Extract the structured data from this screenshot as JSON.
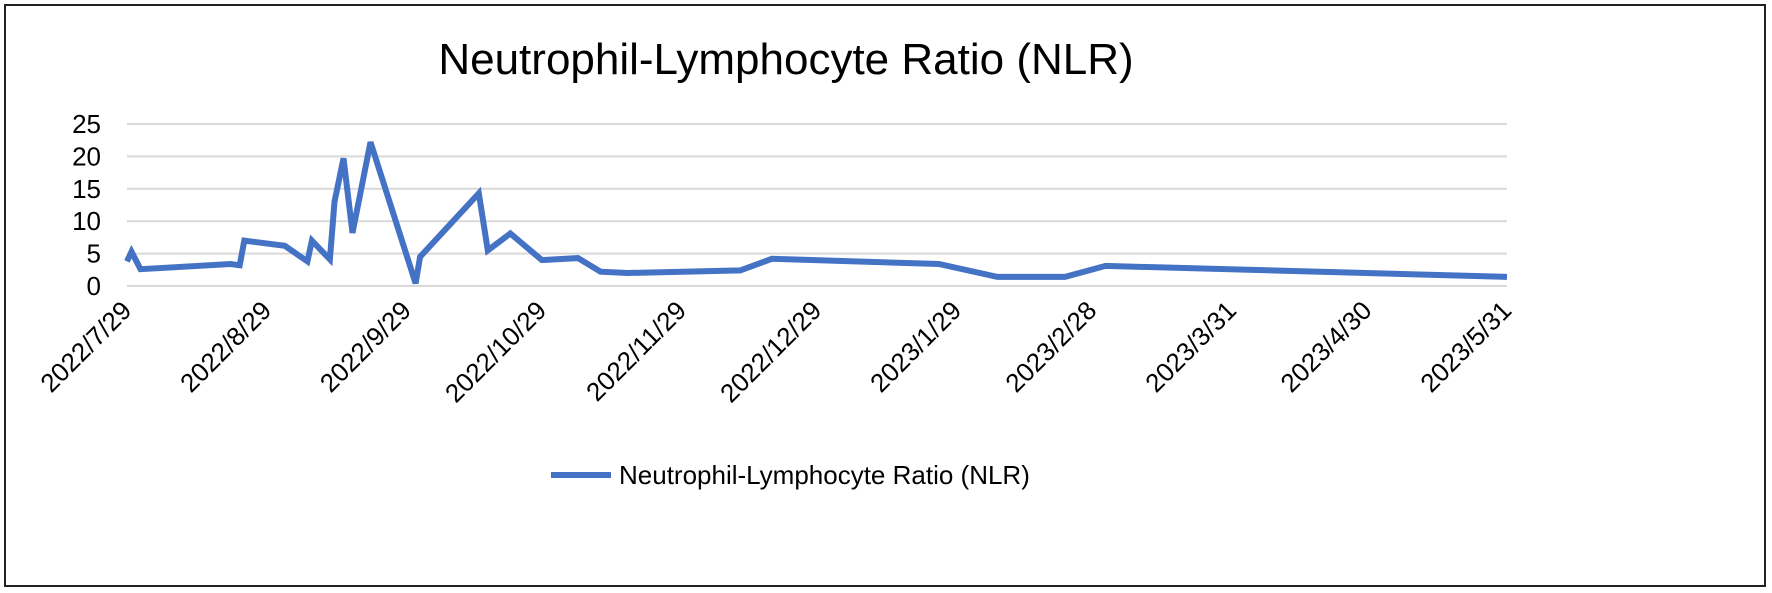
{
  "chart_data": {
    "type": "line",
    "title": "Neutrophil-Lymphocyte Ratio (NLR)",
    "xlabel": "",
    "ylabel": "",
    "xlim": [
      "2022-07-29",
      "2023-05-31"
    ],
    "ylim": [
      0,
      25
    ],
    "y_ticks": [
      0,
      5,
      10,
      15,
      20,
      25
    ],
    "x_tick_labels": [
      "2022/7/29",
      "2022/8/29",
      "2022/9/29",
      "2022/10/29",
      "2022/11/29",
      "2022/12/29",
      "2023/1/29",
      "2023/2/28",
      "2023/3/31",
      "2023/4/30",
      "2023/5/31"
    ],
    "x_tick_dates": [
      "2022-07-29",
      "2022-08-29",
      "2022-09-29",
      "2022-10-29",
      "2022-11-29",
      "2022-12-29",
      "2023-01-29",
      "2023-02-28",
      "2023-03-31",
      "2023-04-30",
      "2023-05-31"
    ],
    "grid": true,
    "legend_position": "bottom",
    "series": [
      {
        "name": "Neutrophil-Lymphocyte Ratio (NLR)",
        "color": "#4472C4",
        "points": [
          {
            "x": "2022-07-29",
            "y": 3.8
          },
          {
            "x": "2022-07-30",
            "y": 5.3
          },
          {
            "x": "2022-08-01",
            "y": 2.6
          },
          {
            "x": "2022-08-21",
            "y": 3.4
          },
          {
            "x": "2022-08-23",
            "y": 3.2
          },
          {
            "x": "2022-08-24",
            "y": 7.0
          },
          {
            "x": "2022-09-02",
            "y": 6.2
          },
          {
            "x": "2022-09-07",
            "y": 3.8
          },
          {
            "x": "2022-09-08",
            "y": 7.0
          },
          {
            "x": "2022-09-12",
            "y": 4.1
          },
          {
            "x": "2022-09-13",
            "y": 13.0
          },
          {
            "x": "2022-09-15",
            "y": 19.7
          },
          {
            "x": "2022-09-17",
            "y": 8.2
          },
          {
            "x": "2022-09-21",
            "y": 22.2
          },
          {
            "x": "2022-10-01",
            "y": 0.4
          },
          {
            "x": "2022-10-02",
            "y": 4.5
          },
          {
            "x": "2022-10-15",
            "y": 14.3
          },
          {
            "x": "2022-10-17",
            "y": 5.5
          },
          {
            "x": "2022-10-22",
            "y": 8.1
          },
          {
            "x": "2022-10-29",
            "y": 4.0
          },
          {
            "x": "2022-11-06",
            "y": 4.3
          },
          {
            "x": "2022-11-11",
            "y": 2.2
          },
          {
            "x": "2022-11-17",
            "y": 2.0
          },
          {
            "x": "2022-12-12",
            "y": 2.4
          },
          {
            "x": "2022-12-19",
            "y": 4.2
          },
          {
            "x": "2023-01-25",
            "y": 3.4
          },
          {
            "x": "2023-02-07",
            "y": 1.4
          },
          {
            "x": "2023-02-22",
            "y": 1.4
          },
          {
            "x": "2023-03-03",
            "y": 3.1
          },
          {
            "x": "2023-05-31",
            "y": 1.4
          }
        ]
      }
    ]
  }
}
